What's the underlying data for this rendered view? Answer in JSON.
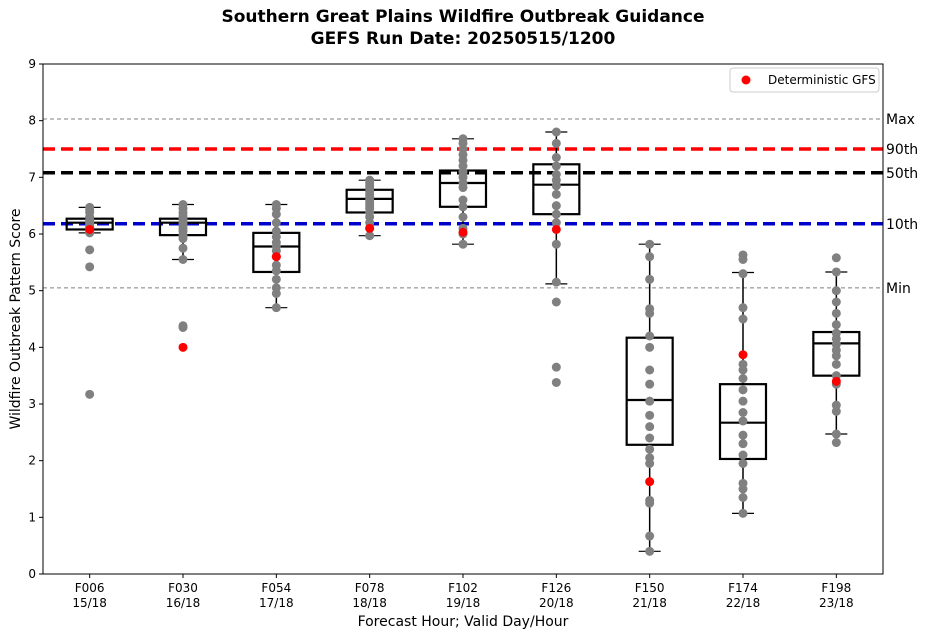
{
  "chart_data": {
    "type": "box",
    "title": "Southern Great Plains Wildfire Outbreak Guidance",
    "subtitle": "GEFS Run Date: 20250515/1200",
    "xlabel": "Forecast Hour; Valid Day/Hour",
    "ylabel": "Wildfire Outbreak Pattern Score",
    "ylim": [
      0,
      9
    ],
    "yticks": [
      "0",
      "1",
      "2",
      "3",
      "4",
      "5",
      "6",
      "7",
      "8",
      "9"
    ],
    "categories": [
      {
        "hour": "F006",
        "valid": "15/18"
      },
      {
        "hour": "F030",
        "valid": "16/18"
      },
      {
        "hour": "F054",
        "valid": "17/18"
      },
      {
        "hour": "F078",
        "valid": "18/18"
      },
      {
        "hour": "F102",
        "valid": "19/18"
      },
      {
        "hour": "F126",
        "valid": "20/18"
      },
      {
        "hour": "F150",
        "valid": "21/18"
      },
      {
        "hour": "F174",
        "valid": "22/18"
      },
      {
        "hour": "F198",
        "valid": "23/18"
      }
    ],
    "reference_lines": [
      {
        "label": "Max",
        "value": 8.03,
        "color": "#808080",
        "style": "dashed-thin"
      },
      {
        "label": "90th",
        "value": 7.5,
        "color": "#ff0000",
        "style": "dashed-thick"
      },
      {
        "label": "50th",
        "value": 7.08,
        "color": "#000000",
        "style": "dashed-thick"
      },
      {
        "label": "10th",
        "value": 6.18,
        "color": "#0000cc",
        "style": "dashed-thick"
      },
      {
        "label": "Min",
        "value": 5.05,
        "color": "#808080",
        "style": "dashed-thin"
      }
    ],
    "boxes": [
      {
        "q1": 6.08,
        "median": 6.2,
        "q3": 6.27,
        "whisker_low": 6.02,
        "whisker_high": 6.47,
        "members": [
          6.47,
          6.42,
          6.38,
          6.3,
          6.25,
          6.22,
          6.2,
          6.18,
          6.15,
          6.12,
          6.1,
          6.05,
          6.02,
          5.72,
          5.42,
          3.17
        ],
        "deterministic": 6.08
      },
      {
        "q1": 5.98,
        "median": 6.2,
        "q3": 6.27,
        "whisker_low": 5.55,
        "whisker_high": 6.52,
        "members": [
          6.52,
          6.45,
          6.38,
          6.32,
          6.27,
          6.22,
          6.2,
          6.15,
          6.1,
          6.05,
          5.98,
          5.92,
          5.75,
          5.55,
          4.38,
          4.35
        ],
        "deterministic": 4.0
      },
      {
        "q1": 5.33,
        "median": 5.78,
        "q3": 6.02,
        "whisker_low": 4.7,
        "whisker_high": 6.52,
        "members": [
          6.52,
          6.45,
          6.35,
          6.2,
          6.05,
          5.95,
          5.85,
          5.78,
          5.7,
          5.6,
          5.45,
          5.35,
          5.2,
          5.05,
          4.95,
          4.7
        ],
        "deterministic": 5.6
      },
      {
        "q1": 6.38,
        "median": 6.62,
        "q3": 6.78,
        "whisker_low": 5.97,
        "whisker_high": 6.95,
        "members": [
          6.95,
          6.9,
          6.85,
          6.8,
          6.75,
          6.7,
          6.65,
          6.6,
          6.55,
          6.5,
          6.45,
          6.38,
          6.3,
          6.2,
          6.1,
          5.97
        ],
        "deterministic": 6.1
      },
      {
        "q1": 6.48,
        "median": 6.9,
        "q3": 7.12,
        "whisker_low": 5.82,
        "whisker_high": 7.68,
        "members": [
          7.68,
          7.6,
          7.5,
          7.4,
          7.3,
          7.2,
          7.1,
          7.0,
          6.9,
          6.82,
          6.6,
          6.48,
          6.3,
          6.1,
          6.0,
          5.82
        ],
        "deterministic": 6.03
      },
      {
        "q1": 6.35,
        "median": 6.87,
        "q3": 7.23,
        "whisker_low": 5.12,
        "whisker_high": 7.8,
        "members": [
          7.8,
          7.6,
          7.35,
          7.2,
          7.05,
          6.95,
          6.85,
          6.7,
          6.5,
          6.35,
          6.2,
          5.82,
          5.15,
          4.8,
          3.65,
          3.38
        ],
        "deterministic": 6.08
      },
      {
        "q1": 2.28,
        "median": 3.07,
        "q3": 4.17,
        "whisker_low": 0.4,
        "whisker_high": 5.82,
        "members": [
          5.82,
          5.6,
          5.2,
          4.68,
          4.6,
          4.2,
          4.0,
          3.6,
          3.35,
          3.05,
          2.8,
          2.6,
          2.4,
          2.2,
          2.05,
          1.95,
          1.3,
          1.25,
          0.67,
          0.4
        ],
        "deterministic": 1.63
      },
      {
        "q1": 2.03,
        "median": 2.67,
        "q3": 3.35,
        "whisker_low": 1.07,
        "whisker_high": 5.32,
        "members": [
          5.63,
          5.55,
          5.3,
          4.7,
          4.5,
          3.7,
          3.6,
          3.45,
          3.25,
          3.05,
          2.85,
          2.7,
          2.45,
          2.3,
          2.1,
          1.95,
          1.6,
          1.5,
          1.35,
          1.07
        ],
        "deterministic": 3.87
      },
      {
        "q1": 3.5,
        "median": 4.07,
        "q3": 4.27,
        "whisker_low": 2.47,
        "whisker_high": 5.33,
        "members": [
          5.58,
          5.33,
          5.0,
          4.8,
          4.6,
          4.4,
          4.25,
          4.15,
          4.05,
          3.95,
          3.85,
          3.7,
          3.5,
          3.35,
          2.98,
          2.87,
          2.47,
          2.32
        ],
        "deterministic": 3.4
      }
    ],
    "legend": {
      "label": "Deterministic GFS",
      "color": "#ff0000",
      "placement": "top-right"
    },
    "colors": {
      "member": "#808080",
      "deterministic": "#ff0000",
      "box": "#000000"
    }
  }
}
